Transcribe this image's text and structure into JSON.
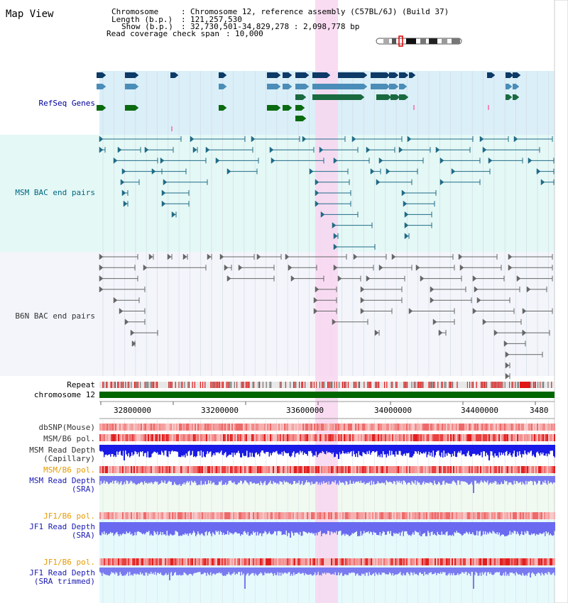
{
  "view": {
    "title": "Map View"
  },
  "header": {
    "chromosome_label": "Chromosome",
    "chromosome_value": "Chromosome 12, reference assembly (C57BL/6J) (Build 37)",
    "length_label": "Length (b.p.)",
    "length_value": "121,257,530",
    "show_label": "Show (b.p.)",
    "show_value": "32,730,501-34,829,278 : 2,098,778 bp",
    "coverage_label": "Read coverage check span",
    "coverage_value": "10,000"
  },
  "tracks": {
    "refseq": "RefSeq Genes",
    "msm_bac": "MSM BAC end pairs",
    "b6n_bac": "B6N BAC end pairs",
    "repeat": "Repeat",
    "chromosome": "chromosome 12",
    "dbsnp": "dbSNP(Mouse)",
    "msm_pol1": "MSM/B6 pol.",
    "msm_depth_cap_1": "MSM Read Depth",
    "msm_depth_cap_2": "(Capillary)",
    "msm_pol2": "MSM/B6 pol.",
    "msm_depth_sra_1": "MSM Read Depth",
    "msm_depth_sra_2": "(SRA)",
    "jf1_pol1": "JF1/B6 pol.",
    "jf1_depth_sra_1": "JF1 Read Depth",
    "jf1_depth_sra_2": "(SRA)",
    "jf1_pol2": "JF1/B6 pol.",
    "jf1_depth_trim_1": "JF1 Read Depth",
    "jf1_depth_trim_2": "(SRA trimmed)"
  },
  "axis": {
    "ticks": [
      "32800000",
      "33200000",
      "33600000",
      "34000000",
      "34400000",
      "3480"
    ]
  },
  "colors": {
    "refseq_bg": "#dbeff8",
    "msm_bg": "#e4f8f6",
    "b6n_bg": "#f3f5fb",
    "highlight": "#f8d6f0",
    "refseq_label": "#000099",
    "msm_label": "#006680",
    "b6n_label": "#333333",
    "pol_orange": "#e69a00",
    "depth_blue": "#1a1ab3",
    "chromosome_green": "#006600"
  }
}
